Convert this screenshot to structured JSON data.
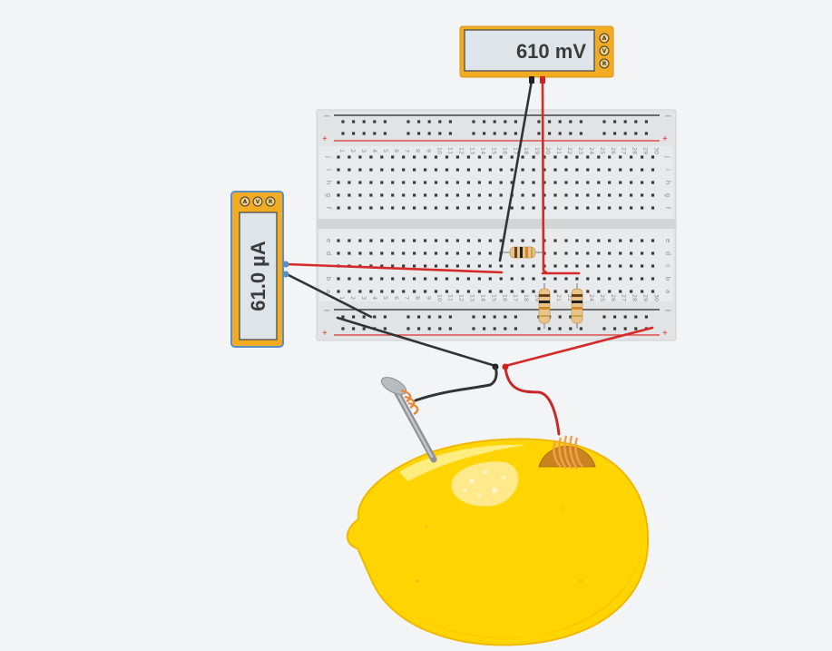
{
  "voltmeter": {
    "reading": "610 mV",
    "mode_buttons": [
      "A",
      "V",
      "R"
    ]
  },
  "ammeter": {
    "reading": "61.0 µA",
    "mode_buttons": [
      "A",
      "V",
      "R"
    ]
  },
  "breadboard": {
    "column_numbers": [
      "1",
      "2",
      "3",
      "4",
      "5",
      "6",
      "7",
      "8",
      "9",
      "10",
      "11",
      "12",
      "13",
      "14",
      "15",
      "16",
      "17",
      "18",
      "19",
      "20",
      "21",
      "22",
      "23",
      "24",
      "25",
      "26",
      "27",
      "28",
      "29",
      "30"
    ],
    "row_letters_top": [
      "f",
      "g",
      "h",
      "i",
      "j"
    ],
    "row_letters_bottom": [
      "a",
      "b",
      "c",
      "d",
      "e"
    ],
    "rail_minus": "−",
    "rail_plus": "+"
  },
  "colors": {
    "background": "#f3f4f5",
    "meter_body": "#f2ac24",
    "ammeter_border": "#5b8fc7",
    "lcd": "#dde5ea",
    "wire_red": "#d42a2a",
    "wire_black": "#333333",
    "lemon": "#ffd400",
    "copper": "#e48a3c",
    "nail": "#9a9ea3"
  },
  "components": {
    "resistor_count": 3,
    "electrodes": [
      "zinc-nail-icon",
      "copper-coil-icon"
    ],
    "fruit": "lemon-icon"
  }
}
